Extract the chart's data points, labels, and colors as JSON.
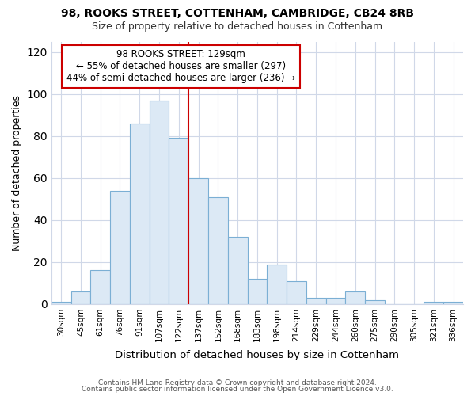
{
  "title1": "98, ROOKS STREET, COTTENHAM, CAMBRIDGE, CB24 8RB",
  "title2": "Size of property relative to detached houses in Cottenham",
  "xlabel": "Distribution of detached houses by size in Cottenham",
  "ylabel": "Number of detached properties",
  "bar_labels": [
    "30sqm",
    "45sqm",
    "61sqm",
    "76sqm",
    "91sqm",
    "107sqm",
    "122sqm",
    "137sqm",
    "152sqm",
    "168sqm",
    "183sqm",
    "198sqm",
    "214sqm",
    "229sqm",
    "244sqm",
    "260sqm",
    "275sqm",
    "290sqm",
    "305sqm",
    "321sqm",
    "336sqm"
  ],
  "bar_values": [
    1,
    6,
    16,
    54,
    86,
    97,
    79,
    60,
    51,
    32,
    12,
    19,
    11,
    3,
    3,
    6,
    2,
    0,
    0,
    1,
    1
  ],
  "bar_color": "#dce9f5",
  "bar_edge_color": "#7bafd4",
  "vline_color": "#cc0000",
  "annotation_text": "98 ROOKS STREET: 129sqm\n← 55% of detached houses are smaller (297)\n44% of semi-detached houses are larger (236) →",
  "annotation_box_color": "white",
  "annotation_box_edge": "#cc0000",
  "ylim": [
    0,
    125
  ],
  "yticks": [
    0,
    20,
    40,
    60,
    80,
    100,
    120
  ],
  "footer1": "Contains HM Land Registry data © Crown copyright and database right 2024.",
  "footer2": "Contains public sector information licensed under the Open Government Licence v3.0.",
  "bg_color": "#ffffff"
}
